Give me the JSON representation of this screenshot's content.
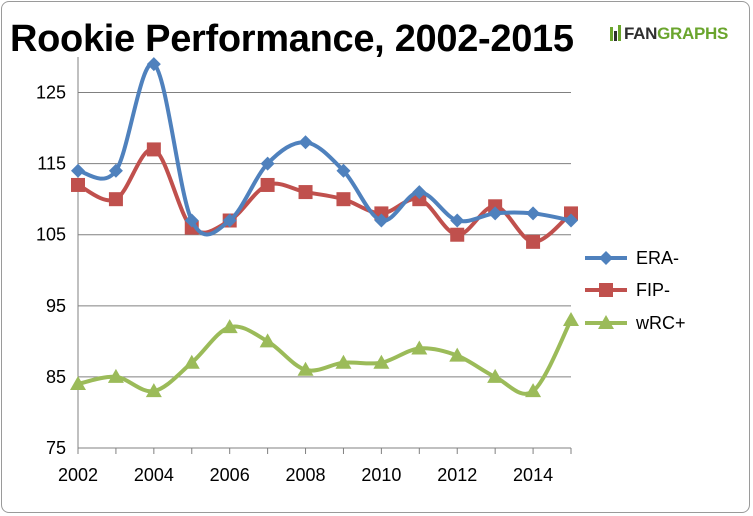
{
  "title": "Rookie Performance, 2002-2015",
  "logo": {
    "left": "FAN",
    "right": "GRAPHS"
  },
  "colors": {
    "ERA-": "#4f81bd",
    "FIP-": "#c0504d",
    "wRC+": "#9bbb59",
    "grid": "#808080"
  },
  "icons": [
    "fangraphs-logo-mark"
  ],
  "chart_data": {
    "type": "line",
    "title": "Rookie Performance, 2002-2015",
    "xlabel": "",
    "ylabel": "",
    "x": [
      2002,
      2003,
      2004,
      2005,
      2006,
      2007,
      2008,
      2009,
      2010,
      2011,
      2012,
      2013,
      2014,
      2015
    ],
    "xticks": [
      "2002",
      "2004",
      "2006",
      "2008",
      "2010",
      "2012",
      "2014"
    ],
    "yticks": [
      "75",
      "85",
      "95",
      "105",
      "115",
      "125"
    ],
    "xlim": [
      2002,
      2015
    ],
    "ylim": [
      75,
      130
    ],
    "grid": "horizontal",
    "legend": "right",
    "series": [
      {
        "name": "ERA-",
        "marker": "diamond",
        "values": [
          114,
          114,
          129,
          107,
          107,
          115,
          118,
          114,
          107,
          111,
          107,
          108,
          108,
          107
        ]
      },
      {
        "name": "FIP-",
        "marker": "square",
        "values": [
          112,
          110,
          117,
          106,
          107,
          112,
          111,
          110,
          108,
          110,
          105,
          109,
          104,
          108
        ]
      },
      {
        "name": "wRC+",
        "marker": "triangle",
        "values": [
          84,
          85,
          83,
          87,
          92,
          90,
          86,
          87,
          87,
          89,
          88,
          85,
          83,
          93
        ]
      }
    ]
  }
}
